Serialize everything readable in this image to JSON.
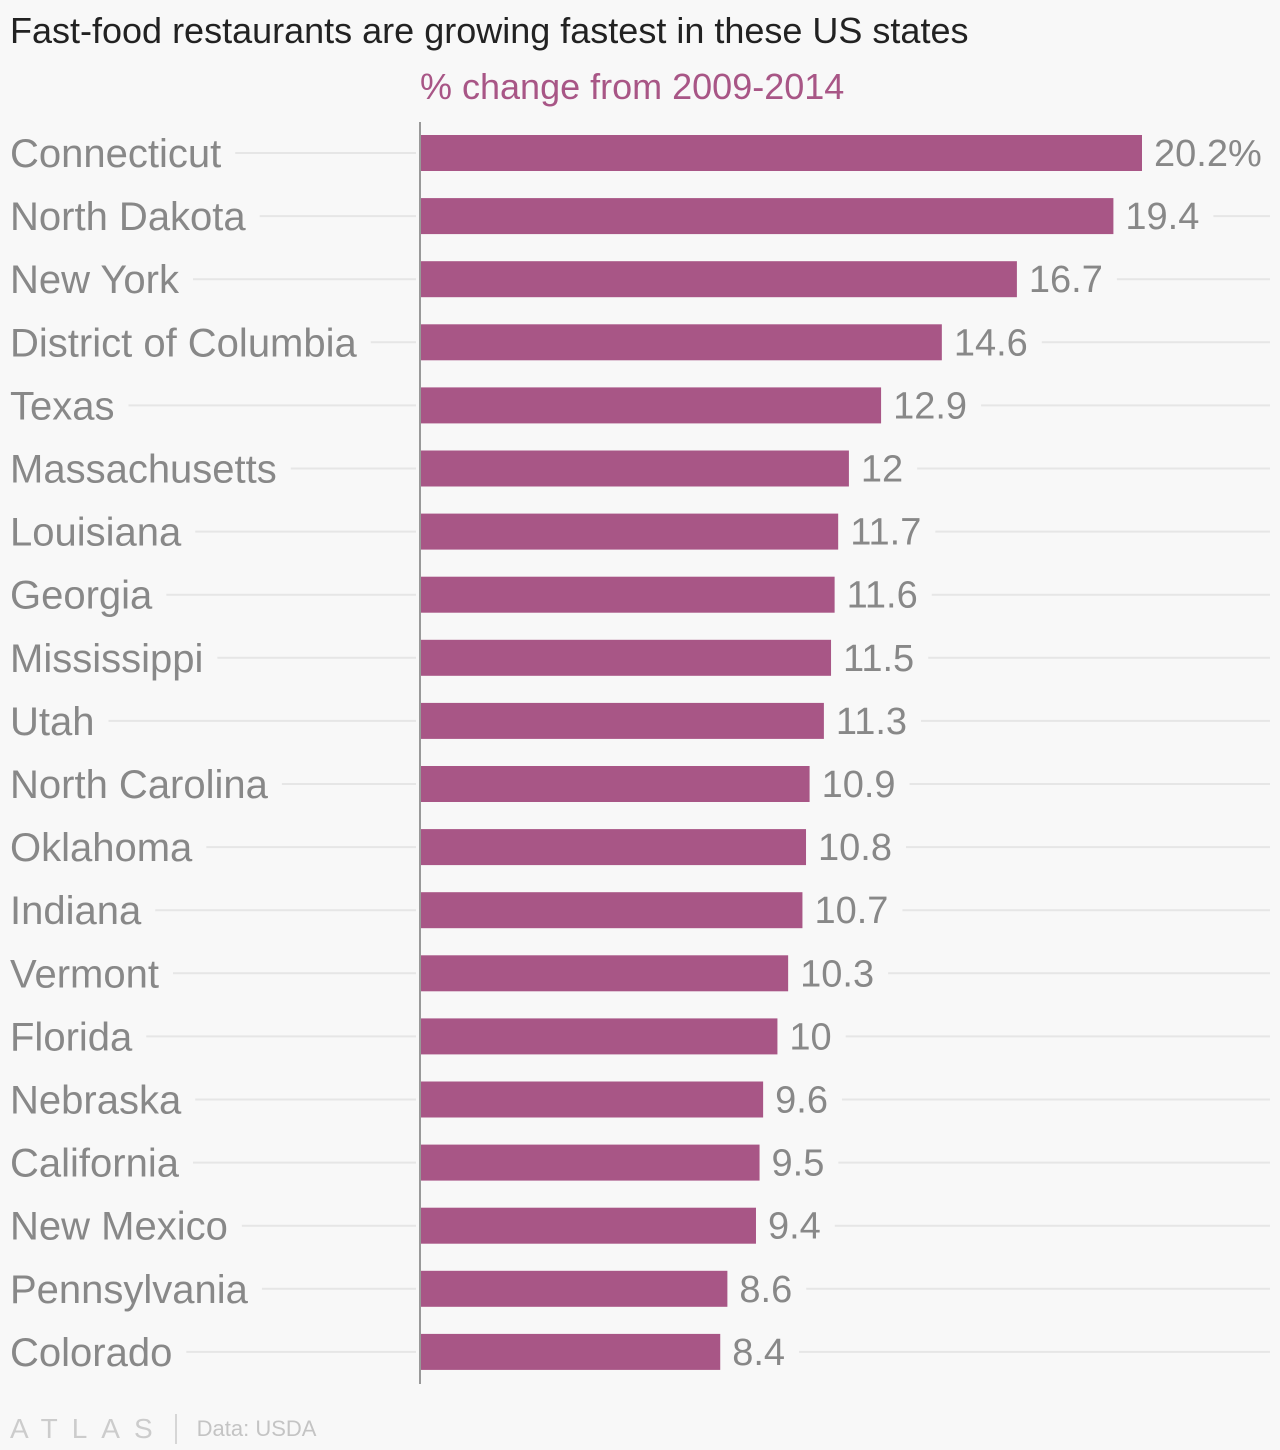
{
  "title": "Fast-food restaurants are growing fastest in these US states",
  "subtitle": "% change from 2009-2014",
  "footer": {
    "logo": "ATLAS",
    "source": "Data: USDA"
  },
  "colors": {
    "bar": "#a85686",
    "subtitle": "#a85686",
    "text": "#888888"
  },
  "chart_data": {
    "type": "bar",
    "orientation": "horizontal",
    "title": "Fast-food restaurants are growing fastest in these US states",
    "subtitle": "% change from 2009-2014",
    "xlabel": "",
    "ylabel": "",
    "xlim": [
      0,
      20.2
    ],
    "grid": true,
    "categories": [
      "Connecticut",
      "North Dakota",
      "New York",
      "District of Columbia",
      "Texas",
      "Massachusetts",
      "Louisiana",
      "Georgia",
      "Mississippi",
      "Utah",
      "North Carolina",
      "Oklahoma",
      "Indiana",
      "Vermont",
      "Florida",
      "Nebraska",
      "California",
      "New Mexico",
      "Pennsylvania",
      "Colorado"
    ],
    "values": [
      20.2,
      19.4,
      16.7,
      14.6,
      12.9,
      12,
      11.7,
      11.6,
      11.5,
      11.3,
      10.9,
      10.8,
      10.7,
      10.3,
      10,
      9.6,
      9.5,
      9.4,
      8.6,
      8.4
    ],
    "value_labels": [
      "20.2%",
      "19.4",
      "16.7",
      "14.6",
      "12.9",
      "12",
      "11.7",
      "11.6",
      "11.5",
      "11.3",
      "10.9",
      "10.8",
      "10.7",
      "10.3",
      "10",
      "9.6",
      "9.5",
      "9.4",
      "8.6",
      "8.4"
    ]
  }
}
